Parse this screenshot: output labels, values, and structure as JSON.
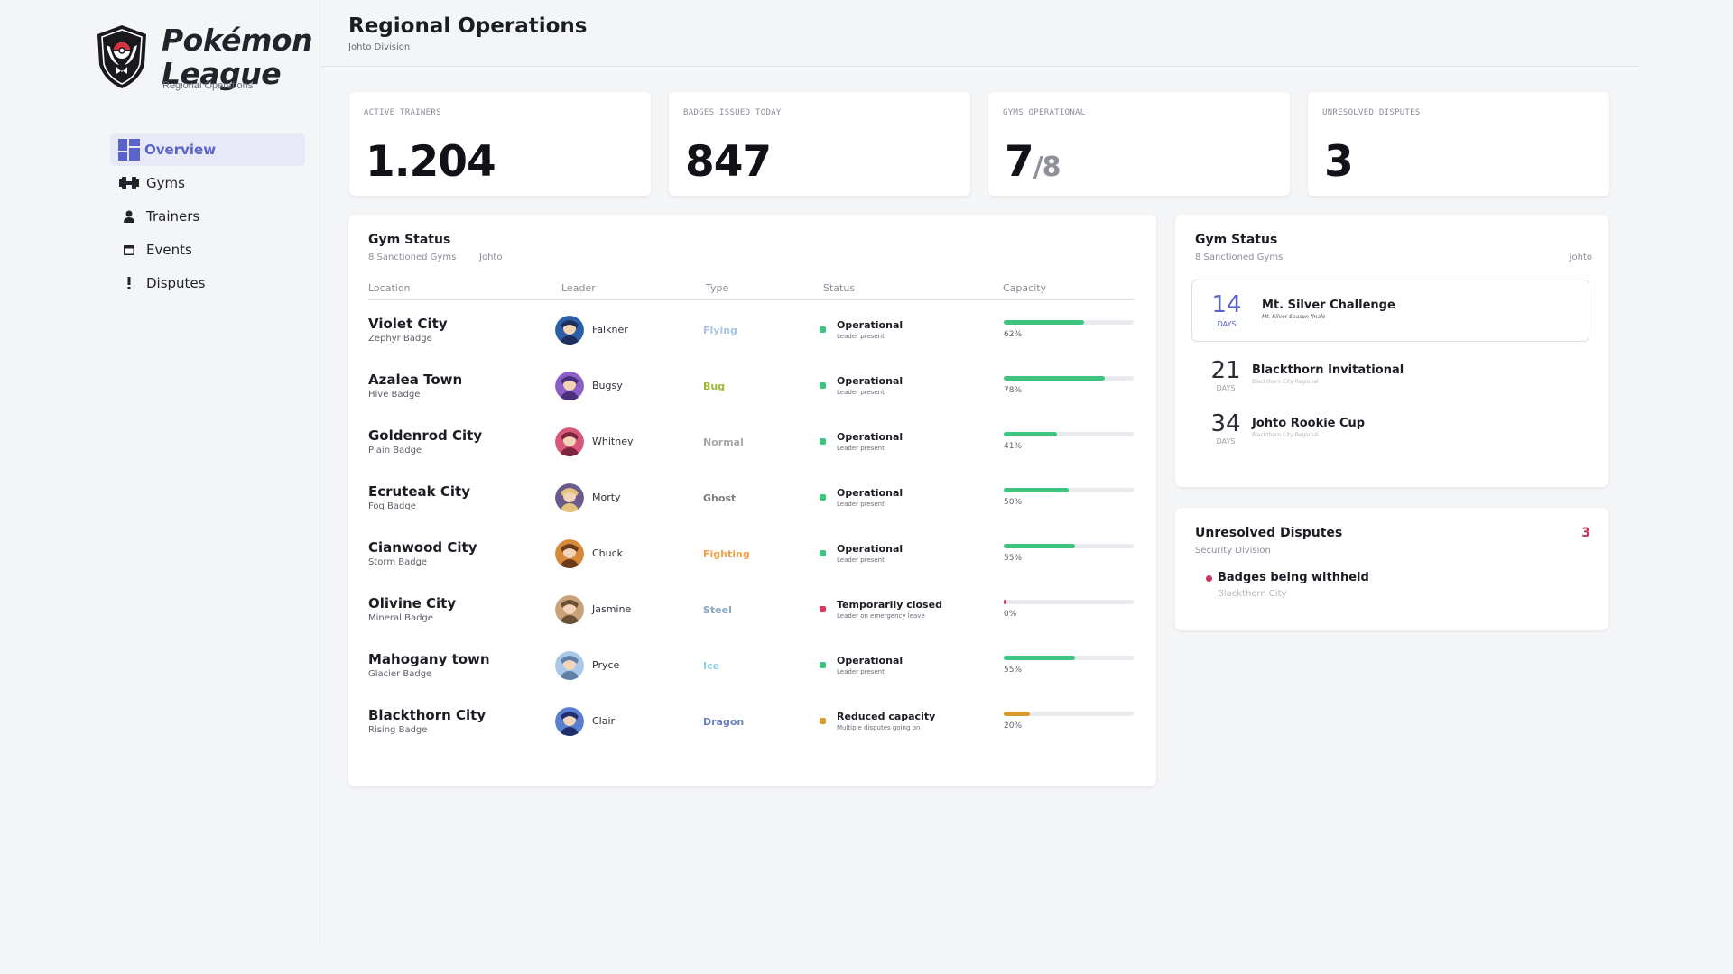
{
  "brand": {
    "title_line1": "Pokémon",
    "title_line2": "League",
    "subtitle": "Regional Operations"
  },
  "nav": [
    {
      "label": "Overview",
      "icon": "dashboard-icon",
      "active": true
    },
    {
      "label": "Gyms",
      "icon": "dumbbell-icon",
      "active": false
    },
    {
      "label": "Trainers",
      "icon": "person-icon",
      "active": false
    },
    {
      "label": "Events",
      "icon": "calendar-icon",
      "active": false
    },
    {
      "label": "Disputes",
      "icon": "exclamation-icon",
      "active": false
    }
  ],
  "header": {
    "title": "Regional Operations",
    "subtitle": "Johto Division"
  },
  "stats": [
    {
      "label": "ACTIVE TRAINERS",
      "value": "1.204"
    },
    {
      "label": "BADGES ISSUED TODAY",
      "value": "847"
    },
    {
      "label": "GYMS OPERATIONAL",
      "value": "7",
      "denom": "/8"
    },
    {
      "label": "UNRESOLVED DISPUTES",
      "value": "3"
    }
  ],
  "gym_status": {
    "title": "Gym Status",
    "subtitle": "8 Sanctioned Gyms",
    "region": "Johto",
    "columns": [
      "Location",
      "Leader",
      "Type",
      "Status",
      "Capacity"
    ],
    "rows": [
      {
        "city": "Violet City",
        "badge": "Zephyr Badge",
        "leader": "Falkner",
        "type": "Flying",
        "type_color": "#a9c4e4",
        "status": "Operational",
        "note": "Leader present",
        "status_color": "#3fc47f",
        "capacity": 62,
        "pct": "62%"
      },
      {
        "city": "Azalea Town",
        "badge": "Hive Badge",
        "leader": "Bugsy",
        "type": "Bug",
        "type_color": "#9bb83a",
        "status": "Operational",
        "note": "Leader present",
        "status_color": "#3fc47f",
        "capacity": 78,
        "pct": "78%"
      },
      {
        "city": "Goldenrod City",
        "badge": "Plain Badge",
        "leader": "Whitney",
        "type": "Normal",
        "type_color": "#a6a6a6",
        "status": "Operational",
        "note": "Leader present",
        "status_color": "#3fc47f",
        "capacity": 41,
        "pct": "41%"
      },
      {
        "city": "Ecruteak City",
        "badge": "Fog Badge",
        "leader": "Morty",
        "type": "Ghost",
        "type_color": "#7e7e7e",
        "status": "Operational",
        "note": "Leader present",
        "status_color": "#3fc47f",
        "capacity": 50,
        "pct": "50%"
      },
      {
        "city": "Cianwood City",
        "badge": "Storm Badge",
        "leader": "Chuck",
        "type": "Fighting",
        "type_color": "#f0a045",
        "status": "Operational",
        "note": "Leader present",
        "status_color": "#3fc47f",
        "capacity": 55,
        "pct": "55%"
      },
      {
        "city": "Olivine City",
        "badge": "Mineral Badge",
        "leader": "Jasmine",
        "type": "Steel",
        "type_color": "#86a8c2",
        "status": "Temporarily closed",
        "note": "Leader on emergency leave",
        "status_color": "#d4395f",
        "capacity": 0,
        "pct": "0%"
      },
      {
        "city": "Mahogany town",
        "badge": "Glacier Badge",
        "leader": "Pryce",
        "type": "Ice",
        "type_color": "#8fd0e8",
        "status": "Operational",
        "note": "Leader present",
        "status_color": "#3fc47f",
        "capacity": 55,
        "pct": "55%"
      },
      {
        "city": "Blackthorn City",
        "badge": "Rising Badge",
        "leader": "Clair",
        "type": "Dragon",
        "type_color": "#6c7fc4",
        "status": "Reduced capacity",
        "note": "Multiple disputes going on",
        "status_color": "#d89a2d",
        "capacity": 20,
        "pct": "20%"
      }
    ]
  },
  "events": {
    "title": "Gym Status",
    "subtitle": "8 Sanctioned Gyms",
    "region": "Johto",
    "items": [
      {
        "days": "14",
        "days_label": "DAYS",
        "name": "Mt. Silver Challenge",
        "meta": "Mt. Silver  Season finale"
      },
      {
        "days": "21",
        "days_label": "DAYS",
        "name": "Blackthorn Invitational",
        "meta": "Blackthorn City  Regional"
      },
      {
        "days": "34",
        "days_label": "DAYS",
        "name": "Johto Rookie Cup",
        "meta": "Blackthorn City  Regional"
      }
    ]
  },
  "disputes": {
    "title": "Unresolved Disputes",
    "subtitle": "Security Division",
    "count": "3",
    "items": [
      {
        "title": "Badges being withheld",
        "location": "Blackthorn City"
      }
    ]
  }
}
